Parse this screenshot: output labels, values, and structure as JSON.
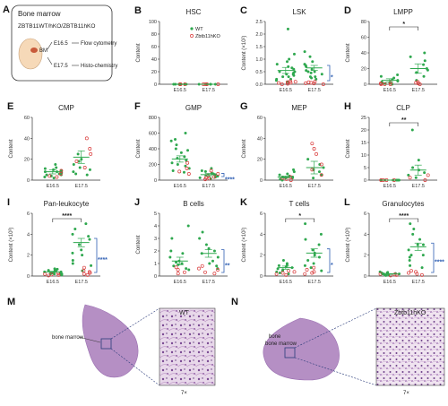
{
  "panelA": {
    "letter": "A",
    "title": "Bone marrow",
    "genotype": "ZBTB11ᵂᵀᵈ⁰ᴸ/ZBTB11ʰᴷᴼ",
    "genotype_plain": "ZBTB11WT/hKO/ZBTB11hKO",
    "bm_label": "BM",
    "steps": [
      {
        "day": "E16.5",
        "method": "Flow cytometry"
      },
      {
        "day": "E17.5",
        "method": "Histo-chemistry"
      }
    ]
  },
  "legend": {
    "wt": "WT",
    "ko": "Zbtb11hKO",
    "wt_color": "#2fa84f",
    "ko_color": "#d93a3a"
  },
  "colors": {
    "wt": "#2fa84f",
    "ko": "#d93a3a",
    "bracket": "#2f5fb3",
    "sig": "#222222"
  },
  "charts": [
    {
      "letter": "B",
      "title": "HSC",
      "ylabel": "Content",
      "ylim": [
        0,
        100
      ],
      "yticks": [
        "0",
        "20",
        "40",
        "60",
        "80",
        "100"
      ],
      "xcats": [
        "E16.5",
        "E17.5"
      ],
      "wt": [
        [
          0,
          0,
          0,
          0,
          0,
          0
        ],
        [
          0,
          0,
          0,
          0,
          0
        ]
      ],
      "ko": [
        [
          0,
          0,
          0,
          0
        ],
        [
          0,
          0,
          0,
          0
        ]
      ],
      "means": [
        0,
        0
      ],
      "sem": [
        0,
        0
      ],
      "sig_top": "",
      "sig_side": "",
      "side_bracket": false,
      "legend": true
    },
    {
      "letter": "C",
      "title": "LSK",
      "ylabel": "Content (×10²)",
      "ylim": [
        0,
        2.5
      ],
      "yticks": [
        "0.0",
        "0.5",
        "1.0",
        "1.5",
        "2.0",
        "2.5"
      ],
      "xcats": [
        "E16.5",
        "E17.5"
      ],
      "wt": [
        [
          0.1,
          0.2,
          0.3,
          0.4,
          0.5,
          0.6,
          0.3,
          0.2,
          0.8,
          1.0,
          1.2,
          0.9,
          0.4,
          0.7,
          2.2,
          0.5,
          0.35,
          0.15,
          0.65,
          0.45
        ],
        [
          0.2,
          0.3,
          0.5,
          0.7,
          0.6,
          0.4,
          0.9,
          1.1,
          0.8,
          1.3,
          0.3,
          0.5,
          0.25,
          0.45,
          0.75,
          0.55
        ]
      ],
      "ko": [
        [
          0.0,
          0.05,
          0.1,
          0.08,
          0.12,
          0.02,
          0.06
        ],
        [
          0.0,
          0.04,
          0.08,
          0.1,
          0.03,
          0.06
        ]
      ],
      "means": [
        0.55,
        0.65
      ],
      "sem": [
        0.12,
        0.1
      ],
      "sig_top": "",
      "sig_side": "*",
      "side_bracket": true,
      "legend": false
    },
    {
      "letter": "D",
      "title": "LMPP",
      "ylabel": "Content",
      "ylim": [
        0,
        80
      ],
      "yticks": [
        "0",
        "20",
        "40",
        "60",
        "80"
      ],
      "xcats": [
        "E16.5",
        "E17.5"
      ],
      "wt": [
        [
          0,
          2,
          5,
          8,
          3,
          1,
          12,
          6,
          4,
          10,
          2
        ],
        [
          5,
          15,
          20,
          35,
          40,
          25,
          18,
          10,
          30
        ]
      ],
      "ko": [
        [
          0,
          1,
          0,
          2,
          0
        ],
        [
          0,
          2,
          1,
          3
        ]
      ],
      "means": [
        5,
        20
      ],
      "sem": [
        2,
        6
      ],
      "sig_top": "*",
      "sig_side": "",
      "side_bracket": false,
      "legend": false
    },
    {
      "letter": "E",
      "title": "CMP",
      "ylabel": "Content",
      "ylim": [
        0,
        60
      ],
      "yticks": [
        "0",
        "20",
        "40",
        "60"
      ],
      "xcats": [
        "E16.5",
        "E17.5"
      ],
      "wt": [
        [
          2,
          5,
          8,
          10,
          4,
          6,
          12,
          3,
          7,
          9,
          15,
          11,
          5,
          8
        ],
        [
          5,
          10,
          15,
          20,
          12,
          8,
          25,
          18,
          6
        ]
      ],
      "ko": [
        [
          3,
          6,
          9,
          4
        ],
        [
          30,
          40,
          25,
          18,
          12
        ]
      ],
      "means": [
        8,
        22
      ],
      "sem": [
        2,
        6
      ],
      "sig_top": "",
      "sig_side": "",
      "side_bracket": false,
      "legend": false
    },
    {
      "letter": "F",
      "title": "GMP",
      "ylabel": "Content",
      "ylim": [
        0,
        800
      ],
      "yticks": [
        "0",
        "200",
        "400",
        "600",
        "800"
      ],
      "xcats": [
        "E16.5",
        "E17.5"
      ],
      "wt": [
        [
          100,
          200,
          300,
          400,
          500,
          250,
          150,
          350,
          450,
          600,
          280,
          180,
          220,
          380,
          520,
          120
        ],
        [
          30,
          60,
          90,
          120,
          150,
          80,
          40,
          110,
          70,
          50,
          20
        ]
      ],
      "ko": [
        [
          80,
          150,
          220,
          110
        ],
        [
          10,
          40,
          60,
          30,
          80,
          120,
          20
        ]
      ],
      "means": [
        270,
        70
      ],
      "sem": [
        40,
        15
      ],
      "sig_top": "",
      "sig_side": "****",
      "side_bracket": true,
      "legend": false
    },
    {
      "letter": "G",
      "title": "MEP",
      "ylabel": "Content",
      "ylim": [
        0,
        60
      ],
      "yticks": [
        "0",
        "20",
        "40",
        "60"
      ],
      "xcats": [
        "E16.5",
        "E17.5"
      ],
      "wt": [
        [
          0,
          2,
          5,
          3,
          8,
          1,
          4,
          6,
          2,
          10,
          3
        ],
        [
          2,
          5,
          10,
          15,
          8,
          20,
          12
        ]
      ],
      "ko": [
        [
          1,
          3,
          2,
          0
        ],
        [
          15,
          25,
          35,
          10,
          5,
          30
        ]
      ],
      "means": [
        3,
        12
      ],
      "sem": [
        1,
        6
      ],
      "sig_top": "",
      "sig_side": "",
      "side_bracket": false,
      "legend": false
    },
    {
      "letter": "H",
      "title": "CLP",
      "ylabel": "Content",
      "ylim": [
        0,
        25
      ],
      "yticks": [
        "0",
        "5",
        "10",
        "15",
        "20",
        "25"
      ],
      "xcats": [
        "E16.5",
        "E17.5"
      ],
      "wt": [
        [
          0,
          0,
          0,
          0,
          0,
          0,
          0
        ],
        [
          1,
          3,
          5,
          8,
          20,
          2,
          4
        ]
      ],
      "ko": [
        [
          0,
          0,
          0,
          0
        ],
        [
          0,
          1,
          2
        ]
      ],
      "means": [
        0,
        4
      ],
      "sem": [
        0,
        2
      ],
      "sig_top": "**",
      "sig_side": "",
      "side_bracket": false,
      "legend": false
    },
    {
      "letter": "I",
      "title": "Pan-leukocyte",
      "ylabel": "Content (×10³)",
      "ylim": [
        0,
        6
      ],
      "yticks": [
        "0",
        "2",
        "4",
        "6"
      ],
      "xcats": [
        "E16.5",
        "E17.5"
      ],
      "wt": [
        [
          0.1,
          0.2,
          0.3,
          0.4,
          0.5,
          0.3,
          0.2,
          0.6,
          0.7,
          0.4,
          0.35,
          0.25,
          0.45,
          0.15,
          0.55,
          0.65,
          0.2,
          0.3
        ],
        [
          1,
          2,
          3,
          4,
          5,
          1.5,
          2.5,
          3.5,
          4.5,
          0.5,
          2.2,
          3.8,
          1.2
        ]
      ],
      "ko": [
        [
          0.1,
          0.2,
          0.05,
          0.15,
          0.25
        ],
        [
          0.1,
          0.2,
          0.3,
          0.5,
          0.8,
          0.4
        ]
      ],
      "means": [
        0.4,
        3.2
      ],
      "sem": [
        0.05,
        0.4
      ],
      "sig_top": "****",
      "sig_side": "****",
      "side_bracket": true,
      "legend": false
    },
    {
      "letter": "J",
      "title": "B cells",
      "ylabel": "Content",
      "ylim": [
        0,
        5
      ],
      "yticks": [
        "0",
        "1",
        "2",
        "3",
        "4",
        "5"
      ],
      "xcats": [
        "E16.5",
        "E17.5"
      ],
      "wt": [
        [
          0.5,
          1,
          1.5,
          2,
          0.8,
          1.2,
          0.6,
          1.8,
          3,
          4,
          0.9,
          1.1
        ],
        [
          1,
          2,
          1.5,
          2.5,
          3,
          0.8,
          1.8,
          2.2,
          1.2,
          3.5,
          0.6
        ]
      ],
      "ko": [
        [
          0.2,
          0.5,
          0.3,
          0.7
        ],
        [
          0.2,
          0.5,
          0.8,
          0.3,
          0.6
        ]
      ],
      "means": [
        1.2,
        1.8
      ],
      "sem": [
        0.3,
        0.3
      ],
      "sig_top": "",
      "sig_side": "**",
      "side_bracket": true,
      "legend": false
    },
    {
      "letter": "K",
      "title": "T cells",
      "ylabel": "Content (×10²)",
      "ylim": [
        0,
        6
      ],
      "yticks": [
        "0",
        "2",
        "4",
        "6"
      ],
      "xcats": [
        "E16.5",
        "E17.5"
      ],
      "wt": [
        [
          0.2,
          0.5,
          0.8,
          1,
          1.2,
          0.6,
          0.4,
          1.5,
          0.9,
          0.7,
          1.1,
          0.3
        ],
        [
          0.5,
          1,
          1.5,
          2,
          2.5,
          3,
          4,
          5,
          1.2,
          1.8,
          2.2,
          0.8,
          3.5
        ]
      ],
      "ko": [
        [
          0.1,
          0.3,
          0.2,
          0.5,
          0.4
        ],
        [
          0.2,
          0.4,
          0.6,
          0.3,
          0.8
        ]
      ],
      "means": [
        0.8,
        2.2
      ],
      "sem": [
        0.15,
        0.4
      ],
      "sig_top": "*",
      "sig_side": "*",
      "side_bracket": true,
      "legend": false
    },
    {
      "letter": "L",
      "title": "Granulocytes",
      "ylabel": "Content (×10³)",
      "ylim": [
        0,
        6
      ],
      "yticks": [
        "0",
        "2",
        "4",
        "6"
      ],
      "xcats": [
        "E16.5",
        "E17.5"
      ],
      "wt": [
        [
          0.1,
          0.2,
          0.3,
          0.15,
          0.25,
          0.35,
          0.05,
          0.2,
          0.3,
          0.1,
          0.4,
          0.2
        ],
        [
          1,
          2,
          3,
          4,
          5,
          1.5,
          2.5,
          3.5,
          2,
          3,
          0.8,
          4.5,
          1.8
        ]
      ],
      "ko": [
        [
          0.05,
          0.1,
          0.15,
          0.2
        ],
        [
          0.1,
          0.2,
          0.3,
          0.5,
          0.4
        ]
      ],
      "means": [
        0.2,
        2.8
      ],
      "sem": [
        0.03,
        0.35
      ],
      "sig_top": "****",
      "sig_side": "****",
      "side_bracket": true,
      "legend": false
    }
  ],
  "panelM": {
    "letter": "M",
    "genotype": "WT",
    "tissue": "bone marrow",
    "magnification": "7×"
  },
  "panelN": {
    "letter": "N",
    "genotype": "Zbtb11hKO",
    "tissue": "bone marrow",
    "magnification": "7×"
  }
}
